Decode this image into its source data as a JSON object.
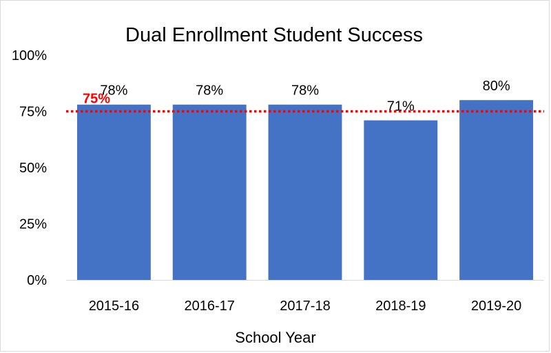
{
  "chart_data": {
    "type": "bar",
    "title": "Dual Enrollment Student Success",
    "xlabel": "School Year",
    "ylabel": "",
    "categories": [
      "2015-16",
      "2016-17",
      "2017-18",
      "2018-19",
      "2019-20"
    ],
    "values": [
      78,
      78,
      78,
      71,
      80
    ],
    "data_labels": [
      "78%",
      "78%",
      "78%",
      "71%",
      "80%"
    ],
    "ylim": [
      0,
      100
    ],
    "yticks": [
      0,
      25,
      50,
      75,
      100
    ],
    "ytick_labels": [
      "0%",
      "25%",
      "50%",
      "75%",
      "100%"
    ],
    "grid": false,
    "bar_color": "#4472C4",
    "target_line": {
      "value": 75,
      "label": "75%",
      "color": "#FF0000",
      "style": "dotted"
    }
  }
}
